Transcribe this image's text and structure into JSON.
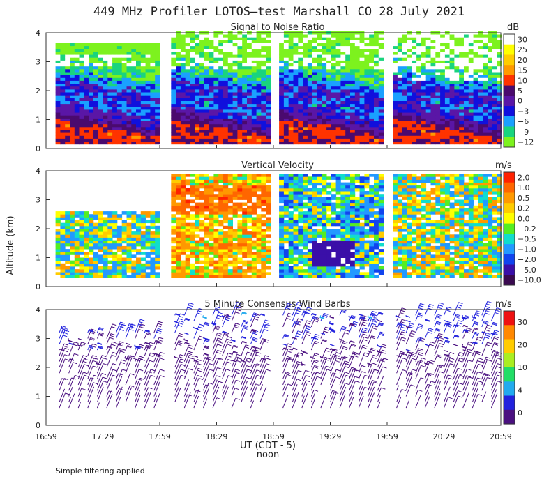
{
  "title": "449 MHz Profiler LOTOS—test Marshall CO 28 July 2021",
  "xlabel": "UT  (CDT - 5)",
  "xlabel_sub": "noon",
  "footnote": "Simple filtering applied",
  "ylabel": "Altitude (km)",
  "chart_data": [
    {
      "type": "heatmap",
      "title": "Signal to Noise Ratio",
      "unit": "dB",
      "x": [
        "16:59",
        "17:29",
        "17:59",
        "18:29",
        "18:59",
        "19:29",
        "19:59",
        "20:29",
        "20:59"
      ],
      "y_ticks": [
        0,
        1,
        2,
        3,
        4
      ],
      "ylim": [
        0,
        4
      ],
      "data_gaps_ut": [
        [
          "17:59",
          "18:02"
        ],
        [
          "18:56",
          "18:59"
        ],
        [
          "19:55",
          "19:59"
        ]
      ],
      "colorbar": {
        "labels": [
          "30",
          "25",
          "20",
          "15",
          "10",
          "5",
          "0",
          "−3",
          "−6",
          "−9",
          "−12"
        ],
        "colors": [
          "#ffffff",
          "#ffff00",
          "#ffcc00",
          "#ff9900",
          "#ff3300",
          "#4a0a6e",
          "#5a16a6",
          "#1010dd",
          "#1aa0ff",
          "#19d47e",
          "#7df21e"
        ]
      },
      "approx_profile_dB": [
        {
          "alt_km": 0.2,
          "value": 10
        },
        {
          "alt_km": 0.6,
          "value": 12
        },
        {
          "alt_km": 1.0,
          "value": 3
        },
        {
          "alt_km": 1.5,
          "value": -3
        },
        {
          "alt_km": 2.0,
          "value": 0
        },
        {
          "alt_km": 2.5,
          "value": -6
        },
        {
          "alt_km": 3.0,
          "value": -10
        },
        {
          "alt_km": 3.5,
          "value": -12
        }
      ]
    },
    {
      "type": "heatmap",
      "title": "Vertical Velocity",
      "unit": "m/s",
      "x": [
        "16:59",
        "17:29",
        "17:59",
        "18:29",
        "18:59",
        "19:29",
        "19:59",
        "20:29",
        "20:59"
      ],
      "y_ticks": [
        0,
        1,
        2,
        3,
        4
      ],
      "ylim": [
        0,
        4
      ],
      "colorbar": {
        "labels": [
          "2.0",
          "1.0",
          "0.5",
          "0.2",
          "0.0",
          "−0.2",
          "−0.5",
          "−1.0",
          "−2.0",
          "−5.0",
          "−10.0"
        ],
        "colors": [
          "#ff2200",
          "#ff6600",
          "#ff9900",
          "#ffcc00",
          "#ffff00",
          "#55ee22",
          "#11ddcc",
          "#2299ff",
          "#1144ee",
          "#3a0fa8",
          "#3a0a50"
        ]
      },
      "approx_means_m_per_s": [
        {
          "period": "16:59-17:59",
          "value": -0.2
        },
        {
          "period": "18:02-18:56",
          "value": 0.5
        },
        {
          "period": "18:59-19:55",
          "value": -0.5
        },
        {
          "period": "19:59-20:59",
          "value": 0.0
        }
      ]
    },
    {
      "type": "scatter",
      "subtype": "wind-barbs",
      "title": "5 Minute Consensus Wind Barbs",
      "unit": "m/s",
      "x": [
        "16:59",
        "17:29",
        "17:59",
        "18:29",
        "18:59",
        "19:29",
        "19:59",
        "20:29",
        "20:59"
      ],
      "y_ticks": [
        0,
        1,
        2,
        3,
        4
      ],
      "ylim": [
        0,
        4
      ],
      "colorbar": {
        "labels": [
          "30",
          "20",
          "10",
          "4",
          "0"
        ],
        "colors": [
          "#ee1111",
          "#ff8800",
          "#ffcc00",
          "#aaee22",
          "#22dd66",
          "#22aaee",
          "#2222dd",
          "#4a1080"
        ]
      },
      "approx_speed_profile_m_per_s": [
        {
          "alt_km": 0.8,
          "speed": 3
        },
        {
          "alt_km": 1.4,
          "speed": 6
        },
        {
          "alt_km": 2.2,
          "speed": 10
        },
        {
          "alt_km": 3.0,
          "speed": 13
        },
        {
          "alt_km": 3.8,
          "speed": 14
        }
      ]
    }
  ]
}
